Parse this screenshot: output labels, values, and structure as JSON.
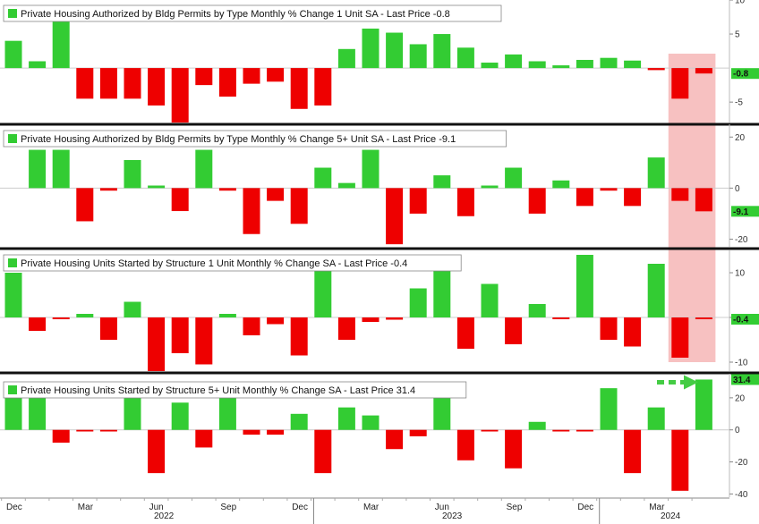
{
  "colors": {
    "positive": "#33cc33",
    "negative": "#ee0000",
    "highlight": "#f4a7a7",
    "arrow": "#44cc44"
  },
  "x_axis": {
    "months": [
      "Dec",
      "Mar",
      "Jun",
      "Sep",
      "Dec",
      "Mar",
      "Jun",
      "Sep",
      "Dec",
      "Mar"
    ],
    "years": [
      "2022",
      "2023",
      "2024"
    ]
  },
  "chart_data": [
    {
      "type": "bar",
      "title": "Private Housing Authorized by Bldg Permits by Type Monthly % Change 1 Unit SA - Last Price -0.8",
      "last_label": "-0.8",
      "ylim": [
        -8,
        10
      ],
      "yticks": [
        10,
        5,
        -5
      ],
      "values": [
        4,
        1,
        7,
        -4.5,
        -4.5,
        -4.5,
        -5.5,
        -8,
        -2.5,
        -4.2,
        -2.3,
        -2,
        -6,
        -5.5,
        2.8,
        5.8,
        5.2,
        3.5,
        5,
        3,
        0.8,
        2,
        1,
        0.4,
        1.2,
        1.5,
        1.1,
        -0.3,
        -4.5,
        -0.8
      ]
    },
    {
      "type": "bar",
      "title": "Private Housing Authorized by Bldg Permits by Type Monthly % Change 5+ Unit SA - Last Price -9.1",
      "last_label": "-9.1",
      "ylim": [
        -23,
        25
      ],
      "yticks": [
        20,
        0,
        -20
      ],
      "values": [
        15,
        15,
        -13,
        -1,
        11,
        1,
        -9,
        15,
        -1,
        -18,
        -5,
        -14,
        8,
        2,
        15,
        -22,
        -10,
        5,
        -11,
        1,
        8,
        -10,
        3,
        -7,
        -1,
        -7,
        12,
        -5,
        -9.1
      ]
    },
    {
      "type": "bar",
      "title": "Private Housing Units Started by Structure 1 Unit Monthly % Change SA - Last Price -0.4",
      "last_label": "-0.4",
      "ylim": [
        -12,
        15
      ],
      "yticks": [
        10,
        0,
        -10
      ],
      "values": [
        10,
        -3,
        -0.4,
        0.8,
        -5,
        3.5,
        -12,
        -8,
        -10.5,
        0.8,
        -4,
        -1.5,
        -8.5,
        10.5,
        -5,
        -1,
        -0.5,
        6.5,
        11.5,
        -7,
        7.5,
        -6,
        3,
        -0.4,
        14,
        -5,
        -6.5,
        12,
        -9,
        -0.4
      ]
    },
    {
      "type": "bar",
      "title": "Private Housing Units Started by Structure 5+ Unit Monthly % Change SA - Last Price 31.4",
      "last_label": "31.4",
      "ylim": [
        -42,
        35
      ],
      "yticks": [
        20,
        0,
        -20,
        -40
      ],
      "values": [
        20,
        20,
        -8,
        -1,
        -1,
        20,
        -27,
        17,
        -11,
        20,
        -3,
        -3,
        10,
        -27,
        14,
        9,
        -12,
        -4,
        20,
        -19,
        -1,
        -24,
        5,
        -1,
        -1,
        26,
        -27,
        14,
        -38,
        31.4
      ]
    }
  ]
}
